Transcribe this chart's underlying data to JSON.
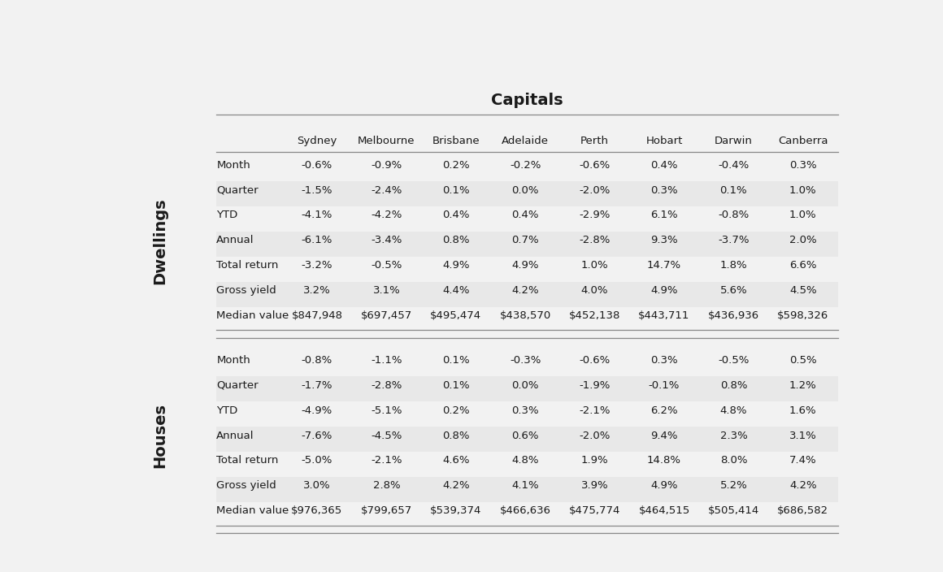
{
  "title": "Capitals",
  "columns": [
    "Sydney",
    "Melbourne",
    "Brisbane",
    "Adelaide",
    "Perth",
    "Hobart",
    "Darwin",
    "Canberra"
  ],
  "section1_label": "Dwellings",
  "section2_label": "Houses",
  "row_labels": [
    "Month",
    "Quarter",
    "YTD",
    "Annual",
    "Total return",
    "Gross yield",
    "Median value"
  ],
  "dwellings_data": [
    [
      "-0.6%",
      "-0.9%",
      "0.2%",
      "-0.2%",
      "-0.6%",
      "0.4%",
      "-0.4%",
      "0.3%"
    ],
    [
      "-1.5%",
      "-2.4%",
      "0.1%",
      "0.0%",
      "-2.0%",
      "0.3%",
      "0.1%",
      "1.0%"
    ],
    [
      "-4.1%",
      "-4.2%",
      "0.4%",
      "0.4%",
      "-2.9%",
      "6.1%",
      "-0.8%",
      "1.0%"
    ],
    [
      "-6.1%",
      "-3.4%",
      "0.8%",
      "0.7%",
      "-2.8%",
      "9.3%",
      "-3.7%",
      "2.0%"
    ],
    [
      "-3.2%",
      "-0.5%",
      "4.9%",
      "4.9%",
      "1.0%",
      "14.7%",
      "1.8%",
      "6.6%"
    ],
    [
      "3.2%",
      "3.1%",
      "4.4%",
      "4.2%",
      "4.0%",
      "4.9%",
      "5.6%",
      "4.5%"
    ],
    [
      "$847,948",
      "$697,457",
      "$495,474",
      "$438,570",
      "$452,138",
      "$443,711",
      "$436,936",
      "$598,326"
    ]
  ],
  "houses_data": [
    [
      "-0.8%",
      "-1.1%",
      "0.1%",
      "-0.3%",
      "-0.6%",
      "0.3%",
      "-0.5%",
      "0.5%"
    ],
    [
      "-1.7%",
      "-2.8%",
      "0.1%",
      "0.0%",
      "-1.9%",
      "-0.1%",
      "0.8%",
      "1.2%"
    ],
    [
      "-4.9%",
      "-5.1%",
      "0.2%",
      "0.3%",
      "-2.1%",
      "6.2%",
      "4.8%",
      "1.6%"
    ],
    [
      "-7.6%",
      "-4.5%",
      "0.8%",
      "0.6%",
      "-2.0%",
      "9.4%",
      "2.3%",
      "3.1%"
    ],
    [
      "-5.0%",
      "-2.1%",
      "4.6%",
      "4.8%",
      "1.9%",
      "14.8%",
      "8.0%",
      "7.4%"
    ],
    [
      "3.0%",
      "2.8%",
      "4.2%",
      "4.1%",
      "3.9%",
      "4.9%",
      "5.2%",
      "4.2%"
    ],
    [
      "$976,365",
      "$799,657",
      "$539,374",
      "$466,636",
      "$475,774",
      "$464,515",
      "$505,414",
      "$686,582"
    ]
  ],
  "bg_color": "#f2f2f2",
  "line_color": "#888888",
  "text_color": "#1a1a1a",
  "title_fontsize": 14,
  "header_fontsize": 9.5,
  "cell_fontsize": 9.5,
  "row_label_fontsize": 9.5,
  "section_label_fontsize": 14
}
